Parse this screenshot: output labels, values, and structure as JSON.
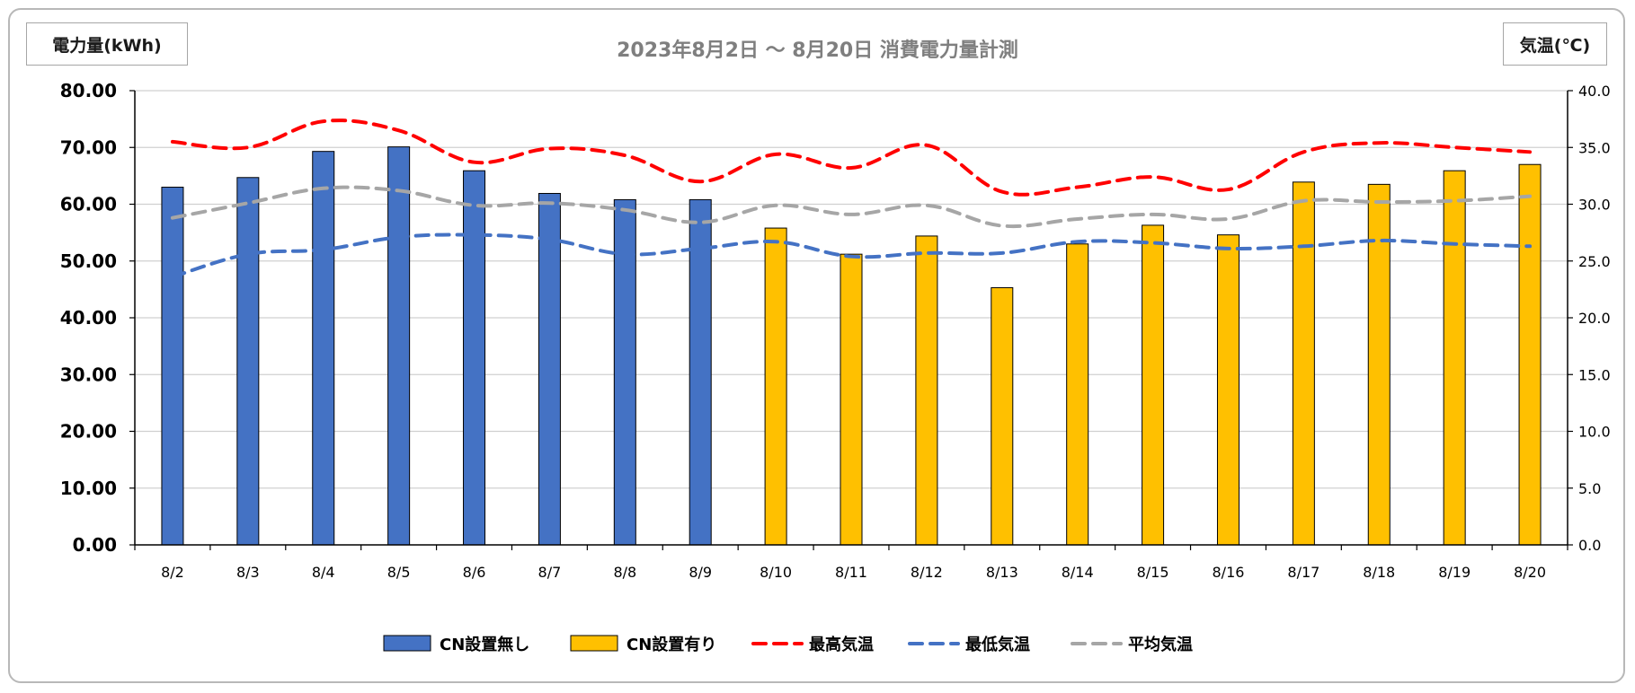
{
  "chart_data": {
    "type": "bar",
    "title": "2023年8月2日 ～ 8月20日 消費電力量計測",
    "ylabel": "電力量(kWh)",
    "y2label": "気温(℃)",
    "categories": [
      "8/2",
      "8/3",
      "8/4",
      "8/5",
      "8/6",
      "8/7",
      "8/8",
      "8/9",
      "8/10",
      "8/11",
      "8/12",
      "8/13",
      "8/14",
      "8/15",
      "8/16",
      "8/17",
      "8/18",
      "8/19",
      "8/20"
    ],
    "ylim": [
      0,
      80
    ],
    "y2lim": [
      0,
      40
    ],
    "yticks": [
      "0.00",
      "10.00",
      "20.00",
      "30.00",
      "40.00",
      "50.00",
      "60.00",
      "70.00",
      "80.00"
    ],
    "y2ticks": [
      "0.0",
      "5.0",
      "10.0",
      "15.0",
      "20.0",
      "25.0",
      "30.0",
      "35.0",
      "40.0"
    ],
    "grid": true,
    "legend_position": "bottom",
    "bar_series": [
      {
        "name": "CN設置無し",
        "color": "#4472c4",
        "values": [
          63.0,
          64.7,
          69.3,
          70.1,
          65.9,
          61.9,
          60.8,
          60.8,
          null,
          null,
          null,
          null,
          null,
          null,
          null,
          null,
          null,
          null,
          null
        ]
      },
      {
        "name": "CN設置有り",
        "color": "#ffc000",
        "values": [
          null,
          null,
          null,
          null,
          null,
          null,
          null,
          null,
          55.8,
          51.2,
          54.4,
          45.3,
          53.0,
          56.3,
          54.6,
          63.9,
          63.5,
          65.9,
          67.0
        ]
      }
    ],
    "line_series": [
      {
        "name": "最高気温",
        "color": "#ff0000",
        "axis": "right",
        "values": [
          35.5,
          35.0,
          37.3,
          36.5,
          33.7,
          34.9,
          34.3,
          32.0,
          34.4,
          33.2,
          35.2,
          31.1,
          31.5,
          32.4,
          31.3,
          34.6,
          35.4,
          35.0,
          34.6
        ]
      },
      {
        "name": "最低気温",
        "color": "#4472c4",
        "axis": "right",
        "values": [
          23.6,
          25.6,
          26.0,
          27.1,
          27.3,
          26.9,
          25.6,
          26.1,
          26.7,
          25.4,
          25.7,
          25.7,
          26.7,
          26.6,
          26.1,
          26.3,
          26.8,
          26.5,
          26.3
        ]
      },
      {
        "name": "平均気温",
        "color": "#a6a6a6",
        "axis": "right",
        "values": [
          28.8,
          30.1,
          31.4,
          31.2,
          29.9,
          30.1,
          29.5,
          28.4,
          29.9,
          29.1,
          29.9,
          28.1,
          28.7,
          29.1,
          28.7,
          30.3,
          30.2,
          30.3,
          30.7
        ]
      }
    ]
  }
}
